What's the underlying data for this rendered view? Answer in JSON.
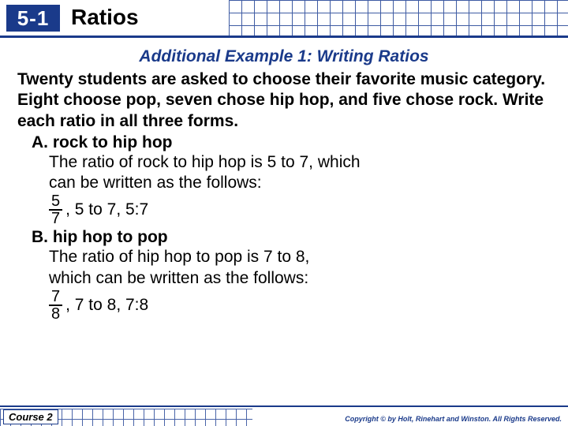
{
  "header": {
    "section_number": "5-1",
    "title": "Ratios",
    "border_color": "#1a3a8a",
    "box_bg": "#1a3a8a",
    "grid_color": "#2a4a9a"
  },
  "subtitle": {
    "text": "Additional Example 1: Writing Ratios",
    "color": "#1a3a8a",
    "fontsize": 21
  },
  "problem_text": "Twenty students are asked to choose their favorite music category. Eight choose pop, seven chose hip hop, and five chose rock. Write each ratio in all three forms.",
  "parts": {
    "a": {
      "label": "A. rock to hip hop",
      "body_line1": "The ratio of rock to hip hop is 5 to 7, which",
      "body_line2": "can be written as the follows:",
      "frac_num": "5",
      "frac_den": "7",
      "tail": ", 5 to 7, 5:7"
    },
    "b": {
      "label": "B. hip hop to pop",
      "body_line1": "The ratio of hip hop to pop is 7 to 8,",
      "body_line2": "which can be written as the follows:",
      "frac_num": "7",
      "frac_den": "8",
      "tail": ", 7 to 8, 7:8"
    }
  },
  "footer": {
    "course": "Course 2",
    "copyright": "Copyright © by Holt, Rinehart and Winston. All Rights Reserved."
  },
  "colors": {
    "primary": "#1a3a8a",
    "text": "#000000",
    "background": "#ffffff"
  }
}
